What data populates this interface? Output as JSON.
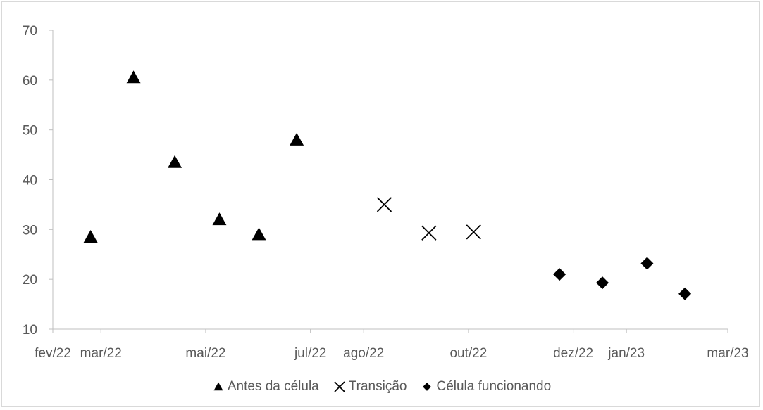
{
  "chart_data": {
    "type": "scatter",
    "title": "",
    "xlabel": "",
    "ylabel": "",
    "ylim": [
      10,
      70
    ],
    "y_ticks": [
      10,
      20,
      30,
      40,
      50,
      60,
      70
    ],
    "x_ticks": [
      {
        "date": "2022-02-01",
        "label": "fev/22"
      },
      {
        "date": "2022-03-01",
        "label": "mar/22"
      },
      {
        "date": "2022-05-01",
        "label": "mai/22"
      },
      {
        "date": "2022-07-01",
        "label": "jul/22"
      },
      {
        "date": "2022-08-01",
        "label": "ago/22"
      },
      {
        "date": "2022-10-01",
        "label": "out/22"
      },
      {
        "date": "2022-12-01",
        "label": "dez/22"
      },
      {
        "date": "2023-01-01",
        "label": "jan/23"
      },
      {
        "date": "2023-03-01",
        "label": "mar/23"
      }
    ],
    "grid": false,
    "legend_position": "bottom",
    "series": [
      {
        "name": "Antes da célula",
        "marker": "triangle",
        "color": "#000000",
        "points": [
          {
            "x": "2022-02-23",
            "y": 28.5
          },
          {
            "x": "2022-03-20",
            "y": 60.5
          },
          {
            "x": "2022-04-13",
            "y": 43.5
          },
          {
            "x": "2022-05-09",
            "y": 32
          },
          {
            "x": "2022-06-01",
            "y": 29
          },
          {
            "x": "2022-06-23",
            "y": 48
          }
        ]
      },
      {
        "name": "Transição",
        "marker": "x",
        "color": "#000000",
        "points": [
          {
            "x": "2022-08-13",
            "y": 35
          },
          {
            "x": "2022-09-08",
            "y": 29.3
          },
          {
            "x": "2022-10-04",
            "y": 29.5
          }
        ]
      },
      {
        "name": "Célula funcionando",
        "marker": "diamond",
        "color": "#000000",
        "points": [
          {
            "x": "2022-11-23",
            "y": 21
          },
          {
            "x": "2022-12-18",
            "y": 19.3
          },
          {
            "x": "2023-01-13",
            "y": 23.2
          },
          {
            "x": "2023-02-04",
            "y": 17.1
          }
        ]
      }
    ]
  }
}
